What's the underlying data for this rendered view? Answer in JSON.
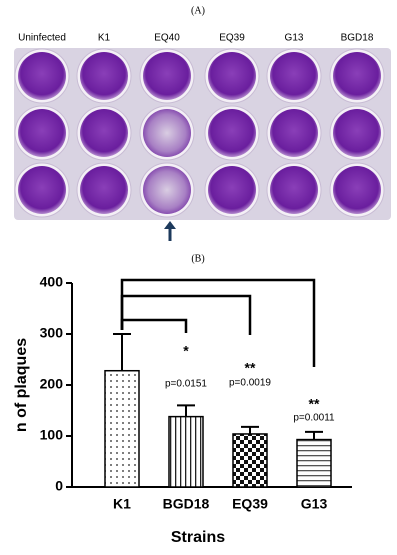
{
  "panel_a": {
    "label": "(A)",
    "columns": [
      "Uninfected",
      "K1",
      "EQ40",
      "EQ39",
      "G13",
      "BGD18"
    ]
  },
  "chart_data": {
    "type": "bar",
    "label": "(B)",
    "x_label": "Strains",
    "y_label": "n of plaques",
    "categories": [
      "K1",
      "BGD18",
      "EQ39",
      "G13"
    ],
    "values": [
      228,
      138,
      104,
      93
    ],
    "errors": [
      72,
      22,
      14,
      15
    ],
    "color": "#ffffff",
    "ylim": [
      0,
      400
    ],
    "yticks": [
      0,
      100,
      200,
      300,
      400
    ],
    "annotations": [
      null,
      {
        "stars": "*",
        "p": "p=0.0151"
      },
      {
        "stars": "**",
        "p": "p=0.0019"
      },
      {
        "stars": "**",
        "p": "p=0.0011"
      }
    ]
  }
}
